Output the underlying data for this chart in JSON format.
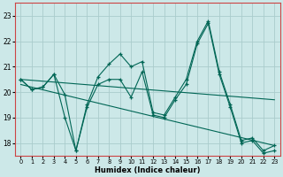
{
  "xlabel": "Humidex (Indice chaleur)",
  "bg_color": "#cce8e8",
  "grid_color": "#aacccc",
  "line_color": "#006655",
  "spine_color": "#cc4444",
  "xlim": [
    -0.5,
    23.5
  ],
  "ylim": [
    17.5,
    23.5
  ],
  "yticks": [
    18,
    19,
    20,
    21,
    22,
    23
  ],
  "xticks": [
    0,
    1,
    2,
    3,
    4,
    5,
    6,
    7,
    8,
    9,
    10,
    11,
    12,
    13,
    14,
    15,
    16,
    17,
    18,
    19,
    20,
    21,
    22,
    23
  ],
  "series1": [
    20.5,
    20.1,
    20.2,
    20.7,
    19.9,
    17.7,
    19.5,
    20.6,
    21.1,
    21.5,
    21.0,
    21.2,
    19.2,
    19.1,
    19.8,
    20.5,
    22.0,
    22.8,
    20.8,
    19.5,
    18.1,
    18.2,
    17.7,
    17.9
  ],
  "series2": [
    20.5,
    20.1,
    20.2,
    20.7,
    19.0,
    17.7,
    19.4,
    20.3,
    20.5,
    20.5,
    19.8,
    20.8,
    19.1,
    19.0,
    19.7,
    20.3,
    21.9,
    22.7,
    20.7,
    19.4,
    18.0,
    18.1,
    17.6,
    17.7
  ],
  "trend1_x": [
    0,
    23
  ],
  "trend1_y": [
    20.5,
    19.7
  ],
  "trend2_x": [
    0,
    23
  ],
  "trend2_y": [
    20.3,
    17.9
  ]
}
